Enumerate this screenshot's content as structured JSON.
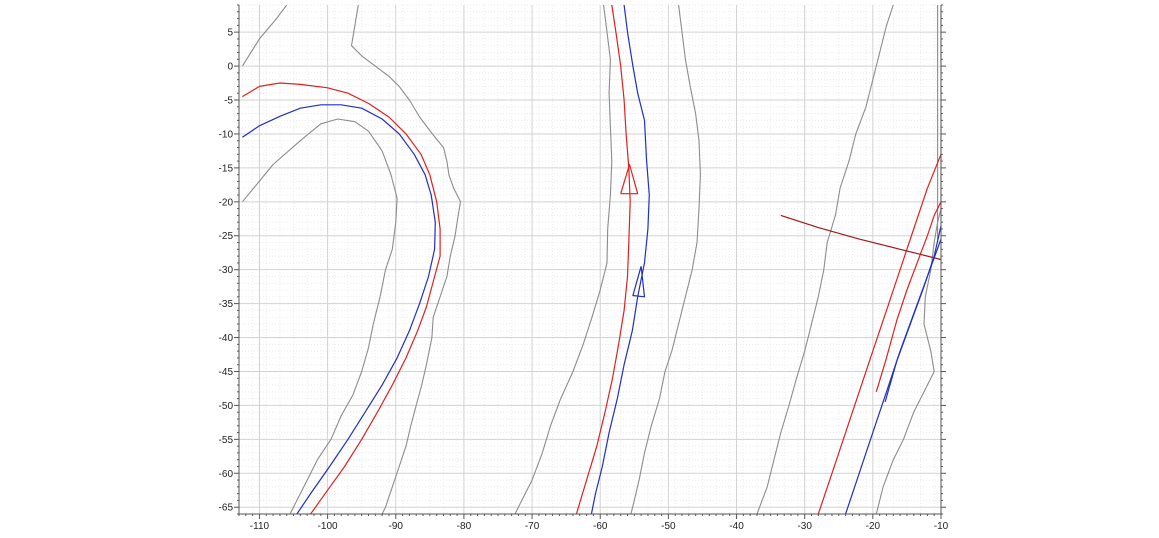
{
  "chart_data": {
    "type": "line",
    "title": "",
    "xlabel": "",
    "ylabel": "",
    "xlim": [
      -113,
      -10
    ],
    "ylim": [
      -66,
      9
    ],
    "grid": true,
    "x_ticks": [
      -110,
      -100,
      -90,
      -80,
      -70,
      -60,
      -50,
      -40,
      -30,
      -20,
      -10
    ],
    "y_ticks": [
      5,
      0,
      -5,
      -10,
      -15,
      -20,
      -25,
      -30,
      -35,
      -40,
      -45,
      -50,
      -55,
      -60,
      -65
    ],
    "colors": {
      "boundary": "#8c8c8c",
      "red": "#e02020",
      "blue": "#2030c0",
      "darkred": "#a01818",
      "grid_major": "#d2d2d2",
      "grid_minor": "#ececec",
      "axis": "#555555"
    },
    "series": [
      {
        "style": "boundary",
        "points": [
          [
            -112.5,
            -20
          ],
          [
            -108,
            -14.5
          ],
          [
            -104,
            -11
          ],
          [
            -101,
            -8.5
          ],
          [
            -98.5,
            -7.8
          ],
          [
            -96,
            -8.2
          ],
          [
            -94,
            -9.6
          ],
          [
            -92,
            -12.5
          ],
          [
            -90.7,
            -16
          ],
          [
            -89.8,
            -19.5
          ],
          [
            -90,
            -23
          ],
          [
            -90.5,
            -27
          ],
          [
            -91.5,
            -30
          ],
          [
            -92.3,
            -34
          ],
          [
            -93.3,
            -38
          ],
          [
            -94,
            -41.5
          ],
          [
            -95,
            -45
          ],
          [
            -96.3,
            -48.5
          ],
          [
            -98,
            -51.5
          ],
          [
            -99.5,
            -55
          ],
          [
            -101.5,
            -58
          ],
          [
            -103,
            -61
          ],
          [
            -104.5,
            -64
          ],
          [
            -105.5,
            -66
          ]
        ]
      },
      {
        "style": "boundary",
        "points": [
          [
            -112.5,
            0
          ],
          [
            -110,
            4
          ],
          [
            -107.5,
            7
          ],
          [
            -106,
            9
          ]
        ]
      },
      {
        "style": "boundary",
        "points": [
          [
            -95.5,
            9
          ],
          [
            -96,
            6
          ],
          [
            -96.5,
            3
          ],
          [
            -95,
            1.5
          ],
          [
            -93,
            0
          ],
          [
            -91,
            -1.5
          ],
          [
            -89.5,
            -3
          ],
          [
            -88,
            -5
          ],
          [
            -86.5,
            -7.5
          ],
          [
            -85,
            -9.5
          ],
          [
            -84,
            -10.8
          ],
          [
            -83,
            -12
          ],
          [
            -82.5,
            -14
          ],
          [
            -82.2,
            -16
          ],
          [
            -81.5,
            -18
          ],
          [
            -80.5,
            -20
          ],
          [
            -81,
            -23
          ],
          [
            -81.3,
            -25
          ],
          [
            -82,
            -28
          ],
          [
            -82.5,
            -31
          ],
          [
            -83.5,
            -34
          ],
          [
            -84.5,
            -37
          ],
          [
            -84.7,
            -40
          ],
          [
            -85.5,
            -44
          ],
          [
            -86.2,
            -47
          ],
          [
            -87,
            -50
          ],
          [
            -87.8,
            -53
          ],
          [
            -88.5,
            -56
          ],
          [
            -89.5,
            -59
          ],
          [
            -90.5,
            -62
          ],
          [
            -91.5,
            -65
          ],
          [
            -92,
            -66
          ]
        ]
      },
      {
        "style": "boundary",
        "points": [
          [
            -59.5,
            9
          ],
          [
            -59,
            5
          ],
          [
            -58.5,
            1
          ],
          [
            -58.7,
            -4
          ],
          [
            -58.5,
            -9
          ],
          [
            -58.3,
            -14
          ],
          [
            -58.5,
            -19
          ],
          [
            -58.9,
            -24
          ],
          [
            -59,
            -29
          ],
          [
            -60,
            -33
          ],
          [
            -61.2,
            -37
          ],
          [
            -62.5,
            -41
          ],
          [
            -64,
            -45
          ],
          [
            -65.8,
            -49
          ],
          [
            -67.3,
            -53
          ],
          [
            -68.5,
            -57
          ],
          [
            -70,
            -61
          ],
          [
            -71.5,
            -64
          ],
          [
            -72.5,
            -66
          ]
        ]
      },
      {
        "style": "boundary",
        "points": [
          [
            -48.5,
            9
          ],
          [
            -48,
            5
          ],
          [
            -47.5,
            1
          ],
          [
            -46.8,
            -3
          ],
          [
            -46,
            -7
          ],
          [
            -45.5,
            -11
          ],
          [
            -45.3,
            -16
          ],
          [
            -45.5,
            -21
          ],
          [
            -45.8,
            -26
          ],
          [
            -46.5,
            -30
          ],
          [
            -47.5,
            -34
          ],
          [
            -48.5,
            -38
          ],
          [
            -49.5,
            -42
          ],
          [
            -50.5,
            -45
          ],
          [
            -51.3,
            -49
          ],
          [
            -52.5,
            -53
          ],
          [
            -53.5,
            -57
          ],
          [
            -54.3,
            -61
          ],
          [
            -55,
            -64
          ],
          [
            -55.5,
            -66
          ]
        ]
      },
      {
        "style": "boundary",
        "points": [
          [
            -37,
            -66
          ],
          [
            -35.5,
            -62
          ],
          [
            -34.5,
            -58
          ],
          [
            -33.5,
            -54
          ],
          [
            -32.3,
            -50
          ],
          [
            -31.2,
            -46
          ],
          [
            -30,
            -42
          ],
          [
            -29,
            -38
          ],
          [
            -28,
            -34
          ],
          [
            -27.2,
            -30
          ],
          [
            -26.7,
            -26
          ],
          [
            -25.5,
            -22
          ],
          [
            -24.8,
            -18
          ],
          [
            -23.5,
            -14
          ],
          [
            -22.5,
            -10
          ],
          [
            -21,
            -6
          ],
          [
            -20,
            -2
          ],
          [
            -19,
            2
          ],
          [
            -18,
            6
          ],
          [
            -17,
            9
          ]
        ]
      },
      {
        "style": "boundary",
        "points": [
          [
            -19.5,
            -66
          ],
          [
            -18.5,
            -62
          ],
          [
            -17,
            -58
          ],
          [
            -15.5,
            -55
          ],
          [
            -14,
            -51
          ],
          [
            -12.5,
            -48
          ],
          [
            -11,
            -45
          ],
          [
            -11.5,
            -42
          ],
          [
            -12.5,
            -38
          ],
          [
            -12.3,
            -34
          ],
          [
            -11.5,
            -30
          ],
          [
            -11,
            -26
          ],
          [
            -10.5,
            -23
          ],
          [
            -10,
            -21
          ],
          [
            -10,
            9
          ]
        ]
      },
      {
        "style": "boundary",
        "points": [
          [
            -10.5,
            -26
          ],
          [
            -10.5,
            9
          ]
        ]
      },
      {
        "style": "red",
        "points": [
          [
            -112.5,
            -4.5
          ],
          [
            -110,
            -3
          ],
          [
            -107,
            -2.5
          ],
          [
            -104,
            -2.7
          ],
          [
            -100,
            -3.2
          ],
          [
            -97,
            -4
          ],
          [
            -94,
            -5.5
          ],
          [
            -91,
            -7.5
          ],
          [
            -88.5,
            -10
          ],
          [
            -86.3,
            -13
          ],
          [
            -85,
            -16
          ],
          [
            -84,
            -20
          ],
          [
            -83.5,
            -24
          ],
          [
            -83.5,
            -28
          ],
          [
            -84.3,
            -31
          ],
          [
            -85.5,
            -35.5
          ],
          [
            -86.8,
            -39
          ],
          [
            -88.5,
            -43
          ],
          [
            -90.5,
            -47
          ],
          [
            -92.7,
            -51
          ],
          [
            -95,
            -55
          ],
          [
            -97.5,
            -59
          ],
          [
            -100,
            -62.5
          ],
          [
            -102.5,
            -66
          ]
        ]
      },
      {
        "style": "red",
        "points": [
          [
            -58.3,
            9
          ],
          [
            -57.7,
            5
          ],
          [
            -57,
            0
          ],
          [
            -56.5,
            -5
          ],
          [
            -56.2,
            -10
          ],
          [
            -55.8,
            -15
          ],
          [
            -55.6,
            -20
          ],
          [
            -55.8,
            -26
          ],
          [
            -56,
            -31
          ],
          [
            -56.5,
            -36
          ],
          [
            -57.3,
            -41
          ],
          [
            -58.2,
            -46
          ],
          [
            -59.3,
            -51
          ],
          [
            -60.5,
            -56
          ],
          [
            -62,
            -61
          ],
          [
            -63.5,
            -66
          ]
        ]
      },
      {
        "style": "red",
        "points": [
          [
            -57,
            -18.8
          ],
          [
            -55.7,
            -14.5
          ],
          [
            -54.5,
            -18.8
          ],
          [
            -57,
            -18.8
          ]
        ]
      },
      {
        "style": "red",
        "points": [
          [
            -28,
            -66
          ],
          [
            -26,
            -60
          ],
          [
            -24,
            -54
          ],
          [
            -22,
            -48
          ],
          [
            -20,
            -42
          ],
          [
            -18,
            -36
          ],
          [
            -16,
            -30
          ],
          [
            -14,
            -24
          ],
          [
            -12,
            -18
          ],
          [
            -10,
            -13
          ]
        ]
      },
      {
        "style": "red",
        "points": [
          [
            -19.5,
            -48
          ],
          [
            -18,
            -43
          ],
          [
            -16.5,
            -37.5
          ],
          [
            -15,
            -33
          ],
          [
            -13.5,
            -29
          ],
          [
            -12,
            -25
          ],
          [
            -11,
            -22
          ],
          [
            -10,
            -20
          ]
        ]
      },
      {
        "style": "darkred",
        "points": [
          [
            -33.5,
            -22
          ],
          [
            -28,
            -23.8
          ],
          [
            -22,
            -25.5
          ],
          [
            -16,
            -27
          ],
          [
            -10,
            -28.5
          ]
        ]
      },
      {
        "style": "blue",
        "points": [
          [
            -112.5,
            -10.5
          ],
          [
            -110,
            -8.8
          ],
          [
            -107,
            -7.4
          ],
          [
            -104,
            -6.2
          ],
          [
            -101,
            -5.7
          ],
          [
            -98,
            -5.7
          ],
          [
            -95,
            -6.2
          ],
          [
            -92,
            -7.8
          ],
          [
            -89.5,
            -10
          ],
          [
            -87.3,
            -13
          ],
          [
            -85.7,
            -16
          ],
          [
            -84.8,
            -19
          ],
          [
            -84.2,
            -23
          ],
          [
            -84.3,
            -27
          ],
          [
            -85.2,
            -31
          ],
          [
            -86.5,
            -35
          ],
          [
            -88,
            -39
          ],
          [
            -89.8,
            -43
          ],
          [
            -92,
            -47
          ],
          [
            -94.5,
            -51
          ],
          [
            -97,
            -55
          ],
          [
            -99.7,
            -59
          ],
          [
            -102.5,
            -63
          ],
          [
            -104.5,
            -66
          ]
        ]
      },
      {
        "style": "blue",
        "points": [
          [
            -56.5,
            9
          ],
          [
            -56,
            5
          ],
          [
            -55.2,
            0
          ],
          [
            -54.5,
            -4
          ],
          [
            -53.5,
            -8
          ],
          [
            -53.2,
            -14
          ],
          [
            -52.8,
            -19
          ],
          [
            -53,
            -24
          ],
          [
            -53.5,
            -29
          ],
          [
            -54.5,
            -34
          ],
          [
            -55.3,
            -39
          ],
          [
            -56.5,
            -44
          ],
          [
            -57.5,
            -49
          ],
          [
            -58.7,
            -54
          ],
          [
            -59.7,
            -59
          ],
          [
            -60.7,
            -63
          ],
          [
            -61.3,
            -66
          ]
        ]
      },
      {
        "style": "blue",
        "points": [
          [
            -54,
            -29.5
          ],
          [
            -55.2,
            -33.8
          ],
          [
            -53.5,
            -34
          ],
          [
            -54,
            -29.5
          ]
        ]
      },
      {
        "style": "blue",
        "points": [
          [
            -24,
            -66
          ],
          [
            -22,
            -60
          ],
          [
            -20,
            -54
          ],
          [
            -18,
            -48
          ],
          [
            -16,
            -42
          ],
          [
            -14,
            -36.5
          ],
          [
            -12,
            -31
          ],
          [
            -10,
            -25.5
          ]
        ]
      },
      {
        "style": "blue",
        "points": [
          [
            -18.2,
            -49.5
          ],
          [
            -16.5,
            -43.5
          ],
          [
            -14.5,
            -38
          ],
          [
            -12.5,
            -32.5
          ],
          [
            -11,
            -28
          ],
          [
            -10,
            -23.5
          ]
        ]
      }
    ]
  }
}
